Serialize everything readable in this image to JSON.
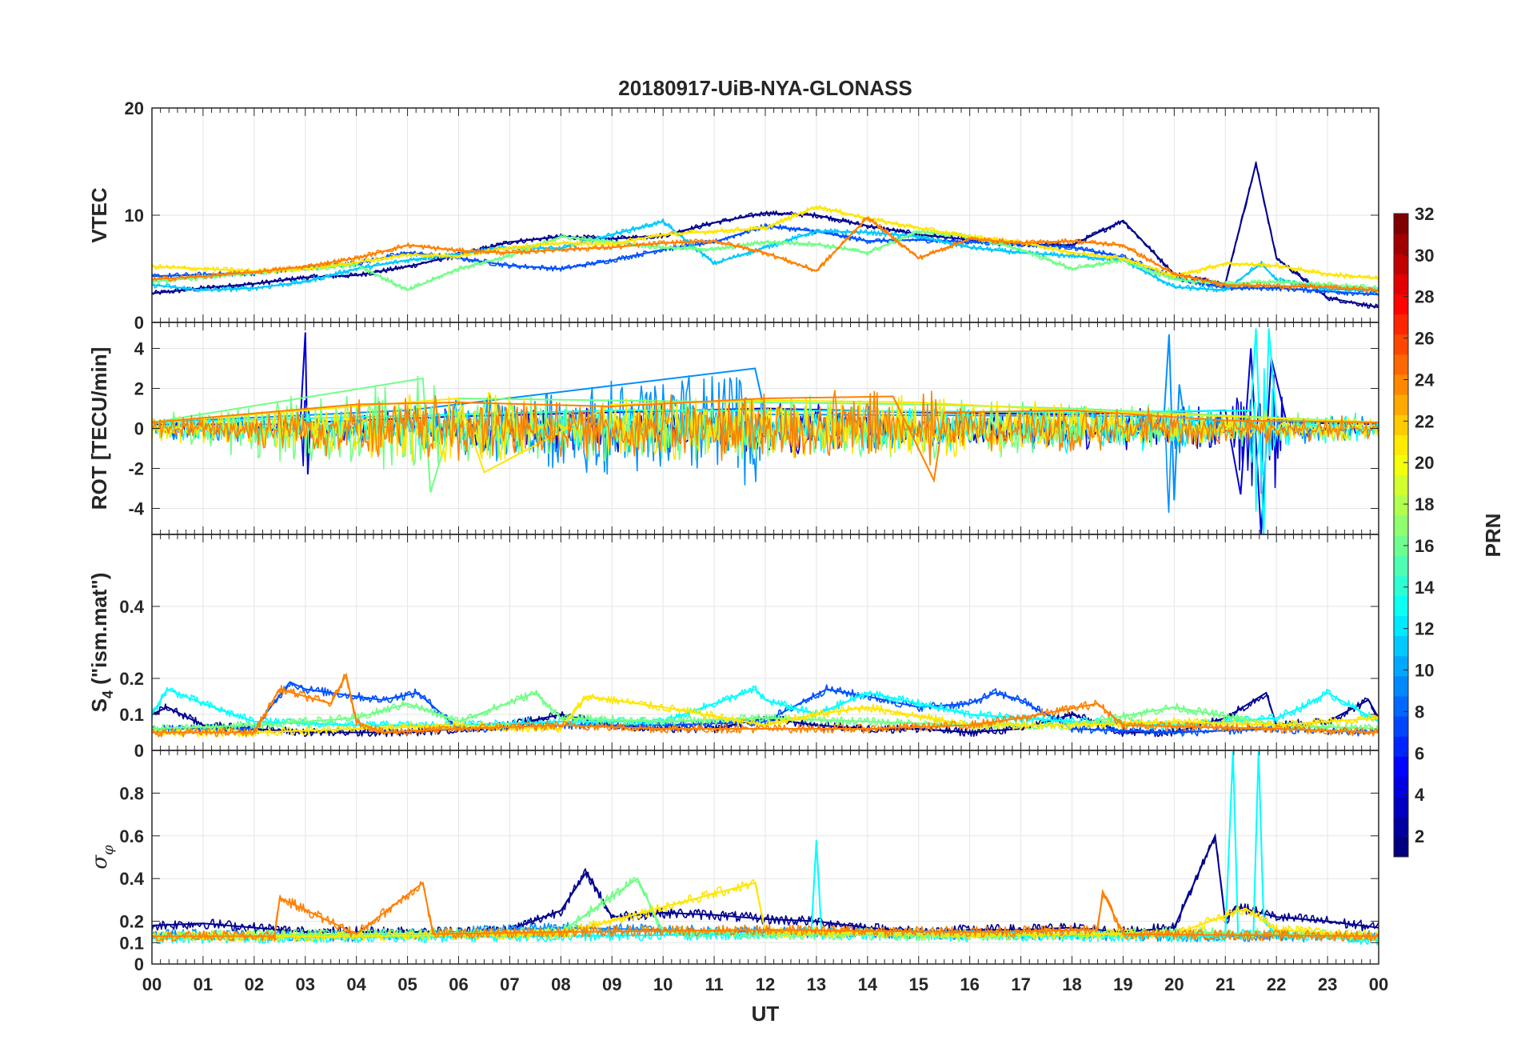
{
  "figure": {
    "title": "20180917-UiB-NYA-GLONASS",
    "xlabel": "UT",
    "x_ticks": [
      "00",
      "01",
      "02",
      "03",
      "04",
      "05",
      "06",
      "07",
      "08",
      "09",
      "10",
      "11",
      "12",
      "13",
      "14",
      "15",
      "16",
      "17",
      "18",
      "19",
      "20",
      "21",
      "22",
      "23",
      "00"
    ]
  },
  "chart_data": [
    {
      "type": "line",
      "panel": "vtec",
      "ylabel": "VTEC",
      "xlim": [
        0,
        24
      ],
      "ylim": [
        0,
        20
      ],
      "y_ticks": [
        0,
        10,
        20
      ],
      "grid": true,
      "series": [
        {
          "color": "#00008f",
          "x": [
            0,
            1,
            2,
            3,
            4,
            5,
            6,
            7,
            8,
            9,
            10,
            11,
            12,
            13,
            14,
            15,
            16,
            17,
            18,
            19,
            20,
            21,
            21.6,
            22,
            23,
            24
          ],
          "values": [
            2.7,
            3.2,
            3.6,
            4.2,
            4.4,
            5.2,
            6.3,
            7.5,
            8.0,
            7.8,
            8.1,
            9.3,
            10.2,
            10.0,
            9.0,
            8.2,
            7.7,
            7.3,
            7.2,
            9.5,
            4.5,
            3.6,
            14.8,
            6.0,
            2.3,
            1.4
          ]
        },
        {
          "color": "#0050ff",
          "x": [
            0,
            2,
            4,
            5,
            6,
            7,
            8,
            9,
            10,
            11,
            12,
            13,
            14,
            15,
            16,
            17,
            18,
            19,
            20,
            21,
            22,
            23,
            24
          ],
          "values": [
            4.3,
            4.6,
            5.5,
            6.5,
            6.0,
            5.3,
            5.0,
            5.8,
            6.8,
            7.5,
            9.0,
            8.5,
            7.6,
            7.7,
            7.5,
            7.3,
            7.0,
            6.1,
            4.2,
            3.2,
            3.2,
            2.9,
            2.6
          ]
        },
        {
          "color": "#00c8ff",
          "x": [
            0,
            1,
            2,
            3,
            4,
            5,
            6,
            7,
            8,
            9,
            10,
            11,
            12,
            13,
            14,
            15,
            16,
            17,
            18,
            19,
            20,
            21,
            21.7,
            22,
            23,
            24
          ],
          "values": [
            3.5,
            3.0,
            3.2,
            3.8,
            5.0,
            5.8,
            6.4,
            7.0,
            6.9,
            8.2,
            9.4,
            5.5,
            7.0,
            8.5,
            8.4,
            8.0,
            7.0,
            6.5,
            6.2,
            5.8,
            3.3,
            3.0,
            5.5,
            4.0,
            3.1,
            3.0
          ]
        },
        {
          "color": "#70ff85",
          "x": [
            0,
            1,
            2,
            3,
            4,
            5,
            6,
            7,
            8,
            9,
            10,
            11,
            12,
            13,
            14,
            15,
            16,
            17,
            18,
            19,
            20,
            21,
            22,
            23,
            24
          ],
          "values": [
            3.8,
            4.2,
            4.6,
            5.0,
            5.4,
            3.0,
            5.0,
            6.2,
            8.0,
            7.5,
            7.0,
            6.8,
            7.5,
            7.3,
            6.5,
            8.5,
            8.0,
            6.8,
            5.0,
            5.8,
            4.0,
            3.6,
            3.8,
            3.5,
            3.2
          ]
        },
        {
          "color": "#ffe600",
          "x": [
            0,
            1,
            2,
            3,
            4,
            5,
            6,
            7,
            8,
            9,
            10,
            11,
            12,
            13,
            14,
            15,
            16,
            17,
            18,
            19,
            20,
            21,
            22,
            23,
            24
          ],
          "values": [
            5.2,
            5.0,
            4.8,
            5.0,
            5.6,
            6.3,
            6.2,
            7.0,
            7.4,
            7.3,
            8.2,
            8.5,
            8.8,
            10.8,
            9.7,
            8.8,
            8.0,
            7.5,
            6.5,
            6.0,
            4.3,
            5.5,
            5.3,
            4.5,
            4.1
          ]
        },
        {
          "color": "#ff8000",
          "x": [
            0,
            1,
            2,
            3,
            4,
            5,
            6,
            7,
            8,
            9,
            10,
            11,
            12,
            13,
            14,
            15,
            16,
            17,
            18,
            19,
            20,
            21,
            22,
            23,
            24
          ],
          "values": [
            4.0,
            4.3,
            4.7,
            5.2,
            6.0,
            7.2,
            6.7,
            6.5,
            6.8,
            7.0,
            7.4,
            7.6,
            6.5,
            4.8,
            9.8,
            6.0,
            7.8,
            7.4,
            7.6,
            7.2,
            4.5,
            3.5,
            3.4,
            3.3,
            3.0
          ]
        }
      ]
    },
    {
      "type": "line",
      "panel": "rot",
      "ylabel": "ROT [TECU/min]",
      "xlim": [
        0,
        24
      ],
      "ylim": [
        -5.3,
        5.3
      ],
      "y_ticks": [
        -4,
        -2,
        0,
        2,
        4
      ],
      "grid": true,
      "series": [
        {
          "color": "#0000d6",
          "x": [
            0,
            2.9,
            3.0,
            3.05,
            3.1,
            6,
            9,
            12,
            15,
            18,
            21,
            21.3,
            21.5,
            21.7,
            21.9,
            22.2,
            24
          ],
          "values": [
            0.2,
            0.2,
            4.8,
            -2.3,
            0.3,
            0.6,
            0.8,
            1.0,
            0.8,
            0.7,
            0.9,
            -3.3,
            4.0,
            -5.3,
            3.5,
            0.3,
            0.2
          ]
        },
        {
          "color": "#0090ff",
          "x": [
            0,
            5,
            11.8,
            12,
            19.8,
            19.9,
            20.0,
            20.1,
            20.2,
            21,
            24
          ],
          "values": [
            0.3,
            0.9,
            3.0,
            0.7,
            0.6,
            4.7,
            -3.6,
            2.2,
            0.4,
            0.4,
            0.3
          ]
        },
        {
          "color": "#00ffff",
          "x": [
            0,
            9,
            12,
            18,
            21.5,
            21.6,
            21.75,
            21.85,
            22,
            24
          ],
          "values": [
            0.3,
            0.9,
            0.9,
            0.8,
            0.9,
            5.0,
            -5.3,
            5.0,
            0.4,
            0.3
          ]
        },
        {
          "color": "#70ff85",
          "x": [
            0,
            5.3,
            5.45,
            6,
            9,
            12,
            15,
            18,
            24
          ],
          "values": [
            0.3,
            2.5,
            -3.2,
            1.5,
            1.4,
            1.3,
            1.2,
            1.0,
            0.3
          ]
        },
        {
          "color": "#ffe600",
          "x": [
            0,
            6,
            6.5,
            9,
            12,
            15,
            18,
            21,
            24
          ],
          "values": [
            0.3,
            1.5,
            -2.2,
            1.2,
            1.4,
            1.3,
            0.9,
            0.6,
            0.3
          ]
        },
        {
          "color": "#ff8000",
          "x": [
            0,
            4,
            6,
            9,
            12,
            14.5,
            15.3,
            15.5,
            18,
            21,
            24
          ],
          "values": [
            0.3,
            1.2,
            1.3,
            1.1,
            1.5,
            1.6,
            -2.6,
            0.8,
            0.9,
            0.4,
            0.3
          ]
        }
      ]
    },
    {
      "type": "line",
      "panel": "s4",
      "ylabel": "S4 (\"ism.mat\")",
      "ylabel_main": "S",
      "ylabel_sub": "4",
      "ylabel_rest": " (\"ism.mat\")",
      "xlim": [
        0,
        24
      ],
      "ylim": [
        0,
        0.6
      ],
      "y_ticks": [
        0,
        0.1,
        0.2,
        0.4
      ],
      "grid": true,
      "series": [
        {
          "color": "#00008f",
          "x": [
            0,
            0.3,
            1,
            2,
            3,
            4,
            5,
            6,
            7,
            8,
            9,
            10,
            11,
            12,
            13,
            14,
            15,
            16,
            17,
            18,
            19,
            20,
            21,
            21.8,
            22,
            23,
            23.8,
            24
          ],
          "values": [
            0.1,
            0.12,
            0.07,
            0.06,
            0.05,
            0.05,
            0.05,
            0.06,
            0.07,
            0.1,
            0.07,
            0.06,
            0.06,
            0.09,
            0.07,
            0.06,
            0.06,
            0.05,
            0.06,
            0.1,
            0.05,
            0.05,
            0.09,
            0.16,
            0.07,
            0.08,
            0.14,
            0.09
          ]
        },
        {
          "color": "#0050ff",
          "x": [
            0,
            2,
            2.7,
            3,
            4,
            4.5,
            5.2,
            6,
            8,
            10,
            12,
            13.2,
            14,
            15,
            16,
            16.5,
            17,
            18,
            20,
            22,
            24
          ],
          "values": [
            0.06,
            0.06,
            0.19,
            0.17,
            0.15,
            0.14,
            0.16,
            0.06,
            0.07,
            0.07,
            0.08,
            0.17,
            0.15,
            0.12,
            0.13,
            0.16,
            0.14,
            0.06,
            0.05,
            0.06,
            0.05
          ]
        },
        {
          "color": "#00ffff",
          "x": [
            0,
            0.3,
            1,
            2,
            4,
            6,
            8,
            10,
            11.8,
            12,
            13,
            14,
            16,
            18,
            20,
            22,
            22.5,
            23,
            24
          ],
          "values": [
            0.1,
            0.17,
            0.13,
            0.08,
            0.07,
            0.07,
            0.08,
            0.08,
            0.17,
            0.14,
            0.1,
            0.16,
            0.1,
            0.08,
            0.07,
            0.09,
            0.12,
            0.16,
            0.08
          ]
        },
        {
          "color": "#70ff85",
          "x": [
            0,
            2,
            4,
            5,
            6,
            7.5,
            8,
            10,
            12,
            14,
            16,
            18,
            20,
            22,
            24
          ],
          "values": [
            0.06,
            0.07,
            0.09,
            0.13,
            0.08,
            0.16,
            0.09,
            0.08,
            0.09,
            0.08,
            0.07,
            0.07,
            0.12,
            0.07,
            0.06
          ]
        },
        {
          "color": "#ffe600",
          "x": [
            0,
            2,
            4,
            6,
            8,
            8.5,
            10,
            12,
            13,
            14,
            16,
            18,
            20,
            22,
            24
          ],
          "values": [
            0.05,
            0.05,
            0.06,
            0.07,
            0.06,
            0.15,
            0.12,
            0.07,
            0.1,
            0.12,
            0.07,
            0.07,
            0.08,
            0.07,
            0.09
          ]
        },
        {
          "color": "#ff8000",
          "x": [
            0,
            2,
            2.5,
            3.5,
            3.8,
            4,
            4.5,
            6,
            8,
            10,
            12,
            14,
            16,
            17,
            18.5,
            19,
            22,
            24
          ],
          "values": [
            0.05,
            0.05,
            0.17,
            0.13,
            0.21,
            0.08,
            0.05,
            0.06,
            0.07,
            0.06,
            0.06,
            0.06,
            0.07,
            0.09,
            0.13,
            0.07,
            0.06,
            0.05
          ]
        }
      ]
    },
    {
      "type": "line",
      "panel": "sigma-phi",
      "ylabel": "σφ",
      "ylabel_main": "σ",
      "ylabel_sub": "φ",
      "xlim": [
        0,
        24
      ],
      "ylim": [
        0,
        1.0
      ],
      "y_ticks": [
        0,
        0.1,
        0.2,
        0.4,
        0.6,
        0.8
      ],
      "grid": true,
      "series": [
        {
          "color": "#00008f",
          "x": [
            0,
            1,
            2,
            3,
            4,
            5,
            6,
            7,
            8,
            8.5,
            9,
            10,
            11,
            12,
            13,
            14,
            15,
            16,
            17,
            18,
            19,
            20,
            20.8,
            21,
            21.2,
            22,
            23,
            24
          ],
          "values": [
            0.18,
            0.19,
            0.17,
            0.15,
            0.15,
            0.15,
            0.15,
            0.16,
            0.25,
            0.43,
            0.22,
            0.24,
            0.23,
            0.21,
            0.2,
            0.17,
            0.15,
            0.16,
            0.16,
            0.17,
            0.15,
            0.17,
            0.6,
            0.2,
            0.27,
            0.22,
            0.2,
            0.17
          ]
        },
        {
          "color": "#0090ff",
          "x": [
            0,
            4,
            8,
            12,
            16,
            20,
            24
          ],
          "values": [
            0.14,
            0.13,
            0.17,
            0.15,
            0.14,
            0.13,
            0.13
          ]
        },
        {
          "color": "#00ffff",
          "x": [
            0,
            8,
            12,
            12.9,
            13.0,
            13.1,
            16,
            21,
            21.15,
            21.25,
            21.35,
            21.55,
            21.65,
            21.75,
            22,
            24
          ],
          "values": [
            0.12,
            0.13,
            0.14,
            0.15,
            0.58,
            0.14,
            0.13,
            0.13,
            1.0,
            0.13,
            0.14,
            0.14,
            1.0,
            0.2,
            0.14,
            0.11
          ]
        },
        {
          "color": "#70ff85",
          "x": [
            0,
            4,
            8,
            9.5,
            10,
            12,
            16,
            20,
            24
          ],
          "values": [
            0.13,
            0.14,
            0.15,
            0.4,
            0.15,
            0.14,
            0.13,
            0.15,
            0.13
          ]
        },
        {
          "color": "#ffe600",
          "x": [
            0,
            4,
            8,
            11.8,
            12,
            16,
            20,
            21.4,
            22,
            24
          ],
          "values": [
            0.13,
            0.13,
            0.14,
            0.38,
            0.15,
            0.14,
            0.14,
            0.26,
            0.16,
            0.13
          ]
        },
        {
          "color": "#ff8000",
          "x": [
            0,
            2.4,
            2.5,
            4,
            5.3,
            5.5,
            8,
            12,
            16,
            18.5,
            18.6,
            19,
            24
          ],
          "values": [
            0.13,
            0.13,
            0.31,
            0.14,
            0.38,
            0.14,
            0.15,
            0.16,
            0.15,
            0.16,
            0.34,
            0.14,
            0.13
          ]
        }
      ]
    }
  ],
  "colorbar": {
    "label": "PRN",
    "min": 1,
    "max": 32,
    "ticks": [
      2,
      4,
      6,
      8,
      10,
      12,
      14,
      16,
      18,
      20,
      22,
      24,
      26,
      28,
      30,
      32
    ],
    "colormap": "jet",
    "levels": 32
  }
}
